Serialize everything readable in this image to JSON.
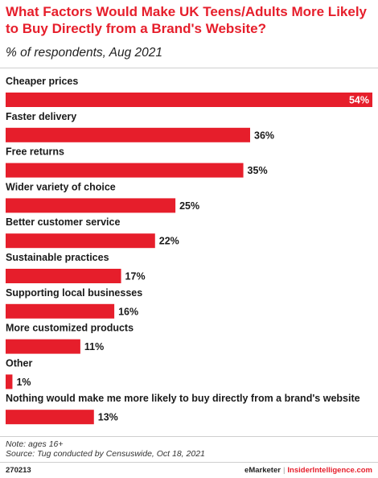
{
  "header": {
    "title": "What Factors Would Make UK Teens/Adults More Likely to Buy Directly from a Brand's Website?",
    "subtitle": "% of respondents, Aug 2021"
  },
  "footer": {
    "note": "Note: ages 16+",
    "source": "Source: Tug conducted by Censuswide, Oct 18, 2021",
    "chart_id": "270213",
    "brand_left": "eMarketer",
    "brand_sep": "|",
    "brand_right": "InsiderIntelligence.com"
  },
  "colors": {
    "bar": "#e61e2b",
    "accent": "#e61e2b"
  },
  "chart_data": {
    "type": "bar",
    "orientation": "horizontal",
    "title": "What Factors Would Make UK Teens/Adults More Likely to Buy Directly from a Brand's Website?",
    "subtitle": "% of respondents, Aug 2021",
    "categories": [
      "Cheaper prices",
      "Faster delivery",
      "Free returns",
      "Wider variety of choice",
      "Better customer service",
      "Sustainable practices",
      "Supporting local businesses",
      "More customized products",
      "Other",
      "Nothing would make me more likely to buy directly from a brand's website"
    ],
    "values": [
      54,
      36,
      35,
      25,
      22,
      17,
      16,
      11,
      1,
      13
    ],
    "value_labels": [
      "54%",
      "36%",
      "35%",
      "25%",
      "22%",
      "17%",
      "16%",
      "11%",
      "1%",
      "13%"
    ],
    "unit": "%",
    "xlim": [
      0,
      54
    ],
    "grid": false,
    "legend": "none"
  }
}
